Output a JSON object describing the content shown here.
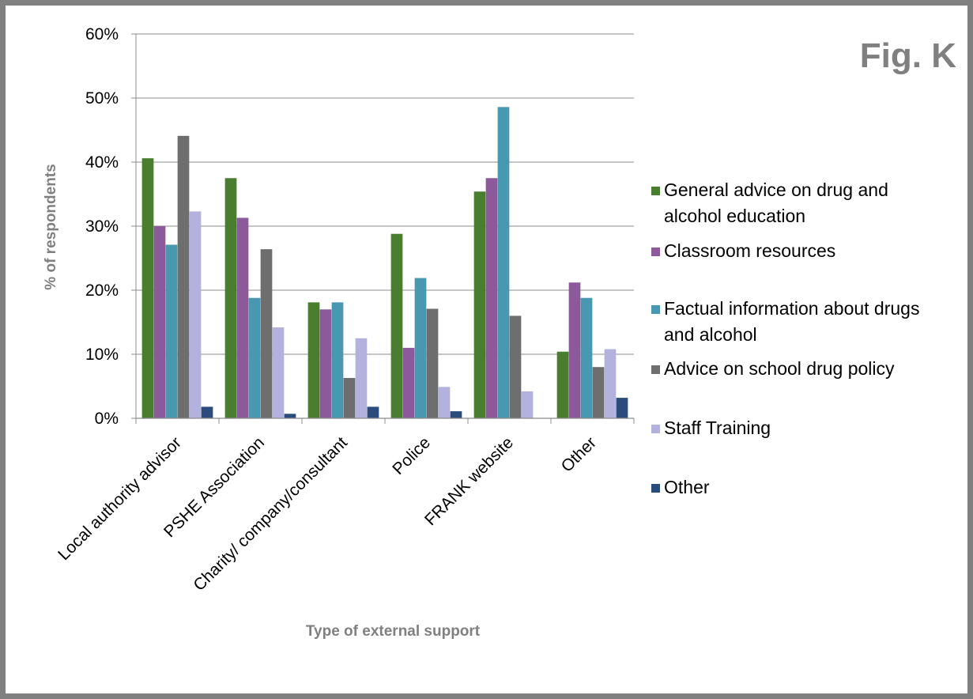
{
  "figure_label": "Fig. K",
  "chart_data": {
    "type": "bar",
    "title": "",
    "xlabel": "Type of external support",
    "ylabel": "% of respondents",
    "ylim": [
      0,
      60
    ],
    "yticks": [
      "0%",
      "10%",
      "20%",
      "30%",
      "40%",
      "50%",
      "60%"
    ],
    "categories": [
      "Local authority advisor",
      "PSHE Association",
      "Charity/ company/consultant",
      "Police",
      "FRANK website",
      "Other"
    ],
    "grid": true,
    "legend_position": "right",
    "series": [
      {
        "name": "General advice on drug and alcohol education",
        "legend_lines": [
          "General advice on drug and",
          "alcohol education"
        ],
        "color": "#4A7E2F",
        "values": [
          40.6,
          37.5,
          18.1,
          28.8,
          35.4,
          10.4
        ]
      },
      {
        "name": "Classroom resources",
        "legend_lines": [
          "Classroom resources"
        ],
        "color": "#8C5A9B",
        "values": [
          30.0,
          31.3,
          17.0,
          11.0,
          37.5,
          21.2
        ]
      },
      {
        "name": "Factual information about drugs and alcohol",
        "legend_lines": [
          "Factual information about drugs",
          "and alcohol"
        ],
        "color": "#4798B0",
        "values": [
          27.1,
          18.8,
          18.1,
          21.9,
          48.6,
          18.8
        ]
      },
      {
        "name": "Advice on school drug policy",
        "legend_lines": [
          "Advice on school drug policy"
        ],
        "color": "#6E6E6E",
        "values": [
          44.1,
          26.4,
          6.3,
          17.1,
          16.0,
          8.0
        ]
      },
      {
        "name": "Staff Training",
        "legend_lines": [
          "Staff Training"
        ],
        "color": "#B3B2DF",
        "values": [
          32.3,
          14.2,
          12.5,
          4.9,
          4.2,
          10.8
        ]
      },
      {
        "name": "Other",
        "legend_lines": [
          "Other"
        ],
        "color": "#2A4C7C",
        "values": [
          1.8,
          0.7,
          1.8,
          1.1,
          0.0,
          3.2
        ]
      }
    ]
  }
}
